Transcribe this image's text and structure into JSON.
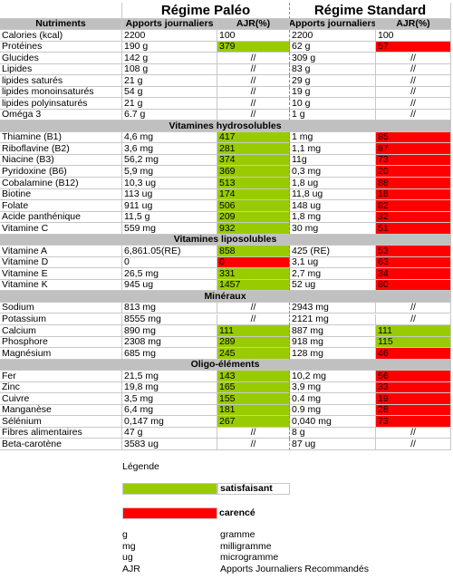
{
  "table": {
    "titles": [
      "Régime Paléo",
      "Régime Standard"
    ],
    "headers": [
      "Nutriments",
      "Apports journaliers",
      "AJR(%)",
      "Apports journaliers",
      "AJR(%)"
    ],
    "body": [
      {
        "cells": [
          "Calories (kcal)",
          "2200",
          "100",
          "2200",
          "100"
        ]
      },
      {
        "cells": [
          "Protéines",
          "190 g",
          {
            "text": "379",
            "fill": "#99cc00"
          },
          "62 g",
          {
            "text": "57",
            "fill": "#ff0000"
          }
        ]
      },
      {
        "cells": [
          "Glucides",
          "142 g",
          "//",
          "309 g",
          "//"
        ]
      },
      {
        "cells": [
          "Lipides",
          "108 g",
          "//",
          "83 g",
          "//"
        ]
      },
      {
        "cells": [
          "lipides saturés",
          "21 g",
          "//",
          "29 g",
          "//"
        ]
      },
      {
        "cells": [
          "lipides monoinsaturés",
          "54 g",
          "//",
          "19 g",
          "//"
        ]
      },
      {
        "cells": [
          "lipides polyinsaturés",
          "21 g",
          "//",
          "10 g",
          "//"
        ]
      },
      {
        "cells": [
          "Oméga 3",
          "6.7 g",
          "//",
          "1 g",
          "//"
        ]
      },
      {
        "section": "Vitamines hydrosolubles"
      },
      {
        "cells": [
          "Thiamine (B1)",
          "4,6 mg",
          {
            "text": "417",
            "fill": "#99cc00"
          },
          "1 mg",
          {
            "text": "85",
            "fill": "#ff0000"
          }
        ]
      },
      {
        "cells": [
          "Riboflavine (B2)",
          "3,6 mg",
          {
            "text": "281",
            "fill": "#99cc00"
          },
          "1,1 mg",
          {
            "text": "87",
            "fill": "#ff0000"
          }
        ]
      },
      {
        "cells": [
          "Niacine (B3)",
          "56,2 mg",
          {
            "text": "374",
            "fill": "#99cc00"
          },
          "11g",
          {
            "text": "73",
            "fill": "#ff0000"
          }
        ]
      },
      {
        "cells": [
          "Pyridoxine (B6)",
          "5,9 mg",
          {
            "text": "369",
            "fill": "#99cc00"
          },
          "0,3 mg",
          {
            "text": "20",
            "fill": "#ff0000"
          }
        ]
      },
      {
        "cells": [
          "Cobalamine (B12)",
          "10,3 ug",
          {
            "text": "513",
            "fill": "#99cc00"
          },
          "1,8 ug",
          {
            "text": "88",
            "fill": "#ff0000"
          }
        ]
      },
      {
        "cells": [
          "Biotine",
          "113 ug",
          {
            "text": "174",
            "fill": "#99cc00"
          },
          "11,8 ug",
          {
            "text": "18",
            "fill": "#ff0000"
          }
        ]
      },
      {
        "cells": [
          "Folate",
          "911 ug",
          {
            "text": "506",
            "fill": "#99cc00"
          },
          "148 ug",
          {
            "text": "82",
            "fill": "#ff0000"
          }
        ]
      },
      {
        "cells": [
          "Acide panthénique",
          "11,5 g",
          {
            "text": "209",
            "fill": "#99cc00"
          },
          "1,8 mg",
          {
            "text": "32",
            "fill": "#ff0000"
          }
        ]
      },
      {
        "cells": [
          "Vitamine C",
          "559 mg",
          {
            "text": "932",
            "fill": "#99cc00"
          },
          "30 mg",
          {
            "text": "51",
            "fill": "#ff0000"
          }
        ]
      },
      {
        "section": "Vitamines liposolubles"
      },
      {
        "cells": [
          "Vitamine A",
          "6,861.05(RE)",
          {
            "text": "858",
            "fill": "#99cc00"
          },
          "425 (RE)",
          {
            "text": "53",
            "fill": "#ff0000"
          }
        ]
      },
      {
        "cells": [
          "Vitamine D",
          "0",
          {
            "text": "0",
            "fill": "#ff0000"
          },
          "3,1 ug",
          {
            "text": "63",
            "fill": "#ff0000"
          }
        ]
      },
      {
        "cells": [
          "Vitamine E",
          "26,5 mg",
          {
            "text": "331",
            "fill": "#99cc00"
          },
          "2,7 mg",
          {
            "text": "34",
            "fill": "#ff0000"
          }
        ]
      },
      {
        "cells": [
          "Vitamine K",
          "945 ug",
          {
            "text": "1457",
            "fill": "#99cc00"
          },
          "52 ug",
          {
            "text": "80",
            "fill": "#ff0000"
          }
        ]
      },
      {
        "section": "Minéraux"
      },
      {
        "cells": [
          "Sodium",
          "813 mg",
          "//",
          "2943 mg",
          "//"
        ]
      },
      {
        "cells": [
          "Potassium",
          "8555 mg",
          "//",
          "2121 mg",
          "//"
        ]
      },
      {
        "cells": [
          "Calcium",
          "890 mg",
          {
            "text": "111",
            "fill": "#99cc00"
          },
          "887 mg",
          {
            "text": "111",
            "fill": "#99cc00"
          }
        ]
      },
      {
        "cells": [
          "Phosphore",
          "2308 mg",
          {
            "text": "289",
            "fill": "#99cc00"
          },
          "918 mg",
          {
            "text": "115",
            "fill": "#99cc00"
          }
        ]
      },
      {
        "cells": [
          "Magnésium",
          "685 mg",
          {
            "text": "245",
            "fill": "#99cc00"
          },
          "128 mg",
          {
            "text": "46",
            "fill": "#ff0000"
          }
        ]
      },
      {
        "section": "Oligo-éléments"
      },
      {
        "cells": [
          "Fer",
          "21,5 mg",
          {
            "text": "143",
            "fill": "#99cc00"
          },
          "10,2 mg",
          {
            "text": "56",
            "fill": "#ff0000"
          }
        ]
      },
      {
        "cells": [
          "Zinc",
          "19,8 mg",
          {
            "text": "165",
            "fill": "#99cc00"
          },
          "3,9 mg",
          {
            "text": "33",
            "fill": "#ff0000"
          }
        ]
      },
      {
        "cells": [
          "Cuivre",
          "3,5 mg",
          {
            "text": "155",
            "fill": "#99cc00"
          },
          "0.4 mg",
          {
            "text": "19",
            "fill": "#ff0000"
          }
        ]
      },
      {
        "cells": [
          "Manganèse",
          "6,4 mg",
          {
            "text": "181",
            "fill": "#99cc00"
          },
          "0.9 mg",
          {
            "text": "28",
            "fill": "#ff0000"
          }
        ]
      },
      {
        "cells": [
          "Sélénium",
          "0,147 mg",
          {
            "text": "267",
            "fill": "#99cc00"
          },
          "0,040 mg",
          {
            "text": "73",
            "fill": "#ff0000"
          }
        ]
      },
      {
        "cells": [
          "Fibres alimentaires",
          "47 g",
          "//",
          "8 g",
          "//"
        ]
      },
      {
        "cells": [
          "Beta-carotène",
          "3583 ug",
          "//",
          "87 ug",
          "//"
        ]
      }
    ]
  },
  "legend": {
    "title": "Légende",
    "items": [
      {
        "label": "satisfaisant",
        "color": "#99cc00"
      },
      {
        "label": "carencé",
        "color": "#ff0000"
      }
    ]
  },
  "units": [
    [
      "g",
      "gramme"
    ],
    [
      "mg",
      "milligramme"
    ],
    [
      "ug",
      "microgramme"
    ],
    [
      "AJR",
      "Apports Journaliers Recommandés"
    ]
  ]
}
